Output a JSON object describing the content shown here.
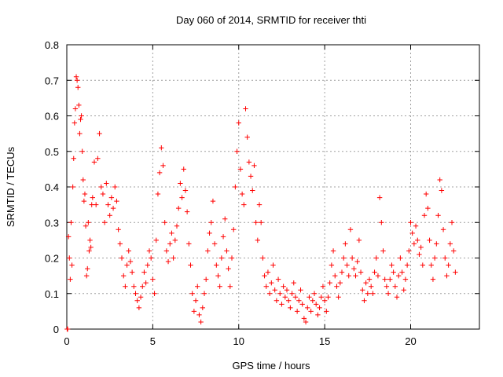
{
  "chart_data": {
    "type": "scatter",
    "title": "Day 060 of 2014, SRMTID for receiver thti",
    "xlabel": "GPS time / hours",
    "ylabel": "SRMTID / TECUs",
    "xlim": [
      0,
      24
    ],
    "ylim": [
      0,
      0.8
    ],
    "xticks": [
      {
        "value": 0,
        "label": "0"
      },
      {
        "value": 5,
        "label": "5"
      },
      {
        "value": 10,
        "label": "10"
      },
      {
        "value": 15,
        "label": "15"
      },
      {
        "value": 20,
        "label": "20"
      }
    ],
    "yticks": [
      {
        "value": 0,
        "label": "0"
      },
      {
        "value": 0.1,
        "label": "0.1"
      },
      {
        "value": 0.2,
        "label": "0.2"
      },
      {
        "value": 0.3,
        "label": "0.3"
      },
      {
        "value": 0.4,
        "label": "0.4"
      },
      {
        "value": 0.5,
        "label": "0.5"
      },
      {
        "value": 0.6,
        "label": "0.6"
      },
      {
        "value": 0.7,
        "label": "0.7"
      },
      {
        "value": 0.8,
        "label": "0.8"
      }
    ],
    "grid": true,
    "marker": "+",
    "color": "#ff0000",
    "series": [
      {
        "name": "SRMTID",
        "points": [
          [
            0.02,
            0.0
          ],
          [
            0.05,
            0.0
          ],
          [
            0.1,
            0.26
          ],
          [
            0.15,
            0.2
          ],
          [
            0.2,
            0.14
          ],
          [
            0.25,
            0.3
          ],
          [
            0.3,
            0.18
          ],
          [
            0.35,
            0.4
          ],
          [
            0.4,
            0.48
          ],
          [
            0.45,
            0.58
          ],
          [
            0.5,
            0.62
          ],
          [
            0.55,
            0.71
          ],
          [
            0.6,
            0.7
          ],
          [
            0.65,
            0.68
          ],
          [
            0.7,
            0.63
          ],
          [
            0.75,
            0.55
          ],
          [
            0.8,
            0.59
          ],
          [
            0.85,
            0.6
          ],
          [
            0.9,
            0.5
          ],
          [
            0.95,
            0.42
          ],
          [
            1.0,
            0.36
          ],
          [
            1.05,
            0.38
          ],
          [
            1.1,
            0.29
          ],
          [
            1.15,
            0.15
          ],
          [
            1.2,
            0.17
          ],
          [
            1.25,
            0.3
          ],
          [
            1.3,
            0.22
          ],
          [
            1.35,
            0.25
          ],
          [
            1.4,
            0.23
          ],
          [
            1.45,
            0.35
          ],
          [
            1.5,
            0.37
          ],
          [
            1.6,
            0.47
          ],
          [
            1.7,
            0.35
          ],
          [
            1.8,
            0.48
          ],
          [
            1.9,
            0.55
          ],
          [
            2.0,
            0.4
          ],
          [
            2.1,
            0.38
          ],
          [
            2.2,
            0.3
          ],
          [
            2.3,
            0.41
          ],
          [
            2.4,
            0.35
          ],
          [
            2.5,
            0.32
          ],
          [
            2.6,
            0.37
          ],
          [
            2.7,
            0.34
          ],
          [
            2.8,
            0.4
          ],
          [
            2.9,
            0.36
          ],
          [
            3.0,
            0.28
          ],
          [
            3.1,
            0.24
          ],
          [
            3.2,
            0.2
          ],
          [
            3.3,
            0.15
          ],
          [
            3.4,
            0.12
          ],
          [
            3.5,
            0.18
          ],
          [
            3.6,
            0.22
          ],
          [
            3.7,
            0.19
          ],
          [
            3.8,
            0.16
          ],
          [
            3.9,
            0.12
          ],
          [
            4.0,
            0.1
          ],
          [
            4.1,
            0.08
          ],
          [
            4.2,
            0.06
          ],
          [
            4.3,
            0.09
          ],
          [
            4.4,
            0.12
          ],
          [
            4.5,
            0.16
          ],
          [
            4.6,
            0.13
          ],
          [
            4.7,
            0.18
          ],
          [
            4.8,
            0.22
          ],
          [
            4.9,
            0.2
          ],
          [
            5.0,
            0.14
          ],
          [
            5.1,
            0.1
          ],
          [
            5.2,
            0.25
          ],
          [
            5.3,
            0.38
          ],
          [
            5.4,
            0.44
          ],
          [
            5.5,
            0.51
          ],
          [
            5.6,
            0.46
          ],
          [
            5.7,
            0.3
          ],
          [
            5.8,
            0.22
          ],
          [
            5.9,
            0.19
          ],
          [
            6.0,
            0.24
          ],
          [
            6.1,
            0.27
          ],
          [
            6.2,
            0.2
          ],
          [
            6.3,
            0.25
          ],
          [
            6.4,
            0.29
          ],
          [
            6.5,
            0.34
          ],
          [
            6.6,
            0.41
          ],
          [
            6.7,
            0.37
          ],
          [
            6.8,
            0.45
          ],
          [
            6.9,
            0.39
          ],
          [
            7.0,
            0.33
          ],
          [
            7.1,
            0.24
          ],
          [
            7.2,
            0.18
          ],
          [
            7.3,
            0.1
          ],
          [
            7.4,
            0.05
          ],
          [
            7.5,
            0.08
          ],
          [
            7.6,
            0.12
          ],
          [
            7.7,
            0.04
          ],
          [
            7.8,
            0.02
          ],
          [
            7.9,
            0.06
          ],
          [
            8.0,
            0.1
          ],
          [
            8.1,
            0.14
          ],
          [
            8.2,
            0.22
          ],
          [
            8.3,
            0.27
          ],
          [
            8.4,
            0.3
          ],
          [
            8.5,
            0.36
          ],
          [
            8.6,
            0.24
          ],
          [
            8.7,
            0.18
          ],
          [
            8.8,
            0.15
          ],
          [
            8.9,
            0.12
          ],
          [
            9.0,
            0.2
          ],
          [
            9.1,
            0.26
          ],
          [
            9.2,
            0.31
          ],
          [
            9.3,
            0.22
          ],
          [
            9.4,
            0.17
          ],
          [
            9.5,
            0.12
          ],
          [
            9.6,
            0.2
          ],
          [
            9.7,
            0.28
          ],
          [
            9.8,
            0.4
          ],
          [
            9.9,
            0.5
          ],
          [
            10.0,
            0.58
          ],
          [
            10.1,
            0.45
          ],
          [
            10.2,
            0.38
          ],
          [
            10.3,
            0.35
          ],
          [
            10.4,
            0.62
          ],
          [
            10.5,
            0.54
          ],
          [
            10.6,
            0.47
          ],
          [
            10.7,
            0.43
          ],
          [
            10.8,
            0.39
          ],
          [
            10.9,
            0.46
          ],
          [
            11.0,
            0.3
          ],
          [
            11.1,
            0.25
          ],
          [
            11.2,
            0.35
          ],
          [
            11.3,
            0.3
          ],
          [
            11.4,
            0.2
          ],
          [
            11.5,
            0.15
          ],
          [
            11.6,
            0.12
          ],
          [
            11.7,
            0.16
          ],
          [
            11.8,
            0.1
          ],
          [
            11.9,
            0.13
          ],
          [
            12.0,
            0.18
          ],
          [
            12.1,
            0.11
          ],
          [
            12.2,
            0.08
          ],
          [
            12.3,
            0.14
          ],
          [
            12.4,
            0.1
          ],
          [
            12.5,
            0.07
          ],
          [
            12.6,
            0.12
          ],
          [
            12.7,
            0.09
          ],
          [
            12.8,
            0.11
          ],
          [
            12.9,
            0.08
          ],
          [
            13.0,
            0.06
          ],
          [
            13.1,
            0.1
          ],
          [
            13.2,
            0.13
          ],
          [
            13.3,
            0.09
          ],
          [
            13.4,
            0.05
          ],
          [
            13.5,
            0.08
          ],
          [
            13.6,
            0.11
          ],
          [
            13.7,
            0.07
          ],
          [
            13.8,
            0.03
          ],
          [
            13.9,
            0.02
          ],
          [
            14.0,
            0.06
          ],
          [
            14.1,
            0.09
          ],
          [
            14.2,
            0.05
          ],
          [
            14.3,
            0.08
          ],
          [
            14.4,
            0.1
          ],
          [
            14.5,
            0.07
          ],
          [
            14.6,
            0.04
          ],
          [
            14.7,
            0.06
          ],
          [
            14.8,
            0.09
          ],
          [
            14.9,
            0.12
          ],
          [
            15.0,
            0.08
          ],
          [
            15.1,
            0.05
          ],
          [
            15.2,
            0.09
          ],
          [
            15.3,
            0.13
          ],
          [
            15.4,
            0.18
          ],
          [
            15.5,
            0.22
          ],
          [
            15.6,
            0.15
          ],
          [
            15.7,
            0.12
          ],
          [
            15.8,
            0.09
          ],
          [
            15.9,
            0.13
          ],
          [
            16.0,
            0.16
          ],
          [
            16.1,
            0.2
          ],
          [
            16.2,
            0.24
          ],
          [
            16.3,
            0.18
          ],
          [
            16.4,
            0.15
          ],
          [
            16.5,
            0.28
          ],
          [
            16.6,
            0.2
          ],
          [
            16.7,
            0.17
          ],
          [
            16.8,
            0.15
          ],
          [
            16.9,
            0.19
          ],
          [
            17.0,
            0.25
          ],
          [
            17.1,
            0.16
          ],
          [
            17.2,
            0.11
          ],
          [
            17.3,
            0.08
          ],
          [
            17.4,
            0.13
          ],
          [
            17.5,
            0.1
          ],
          [
            17.6,
            0.14
          ],
          [
            17.7,
            0.12
          ],
          [
            17.8,
            0.1
          ],
          [
            17.9,
            0.16
          ],
          [
            18.0,
            0.2
          ],
          [
            18.1,
            0.15
          ],
          [
            18.2,
            0.37
          ],
          [
            18.3,
            0.3
          ],
          [
            18.4,
            0.22
          ],
          [
            18.5,
            0.14
          ],
          [
            18.6,
            0.12
          ],
          [
            18.7,
            0.1
          ],
          [
            18.8,
            0.14
          ],
          [
            18.9,
            0.18
          ],
          [
            19.0,
            0.16
          ],
          [
            19.1,
            0.12
          ],
          [
            19.2,
            0.09
          ],
          [
            19.3,
            0.15
          ],
          [
            19.4,
            0.2
          ],
          [
            19.5,
            0.16
          ],
          [
            19.6,
            0.11
          ],
          [
            19.7,
            0.14
          ],
          [
            19.8,
            0.18
          ],
          [
            19.9,
            0.22
          ],
          [
            20.0,
            0.3
          ],
          [
            20.1,
            0.27
          ],
          [
            20.2,
            0.24
          ],
          [
            20.3,
            0.29
          ],
          [
            20.4,
            0.25
          ],
          [
            20.5,
            0.21
          ],
          [
            20.6,
            0.23
          ],
          [
            20.7,
            0.18
          ],
          [
            20.8,
            0.32
          ],
          [
            20.9,
            0.38
          ],
          [
            21.0,
            0.34
          ],
          [
            21.1,
            0.25
          ],
          [
            21.2,
            0.18
          ],
          [
            21.3,
            0.14
          ],
          [
            21.4,
            0.2
          ],
          [
            21.5,
            0.24
          ],
          [
            21.6,
            0.32
          ],
          [
            21.7,
            0.42
          ],
          [
            21.8,
            0.39
          ],
          [
            21.9,
            0.28
          ],
          [
            22.0,
            0.2
          ],
          [
            22.1,
            0.15
          ],
          [
            22.2,
            0.18
          ],
          [
            22.3,
            0.24
          ],
          [
            22.4,
            0.3
          ],
          [
            22.5,
            0.22
          ],
          [
            22.6,
            0.16
          ]
        ]
      }
    ]
  }
}
